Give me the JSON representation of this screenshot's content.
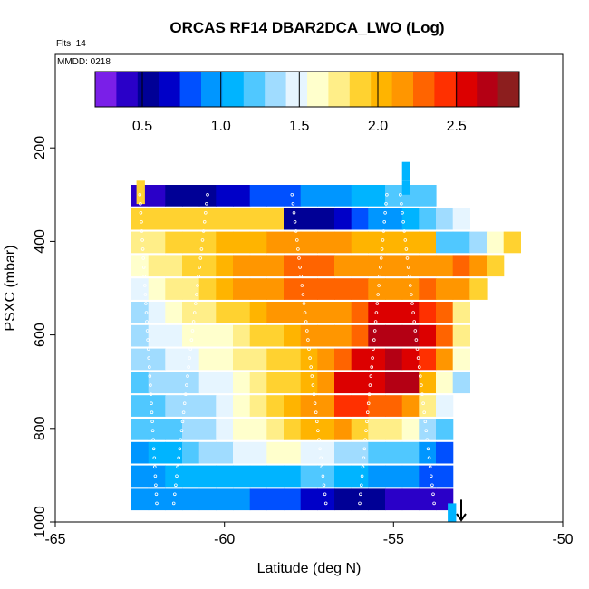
{
  "chart_data": {
    "type": "heatmap",
    "title": "ORCAS RF14 DBAR2DCA_LWO (Log)",
    "flights_label": "Flts: 14",
    "date_label": "MMDD: 0218",
    "xlabel": "Latitude (deg N)",
    "ylabel": "PSXC (mbar)",
    "xlim": [
      -65,
      -50
    ],
    "ylim": [
      1000,
      0
    ],
    "x_ticks": [
      "-65",
      "-60",
      "-55",
      "-50"
    ],
    "x_tick_values": [
      -65,
      -60,
      -55,
      -50
    ],
    "y_ticks": [
      "200",
      "400",
      "600",
      "800",
      "1000"
    ],
    "y_tick_values": [
      200,
      400,
      600,
      800,
      1000
    ],
    "colorbar": {
      "min": 0.2,
      "max": 2.9,
      "tick_labels": [
        "0.5",
        "1.0",
        "1.5",
        "2.0",
        "2.5"
      ],
      "tick_values": [
        0.5,
        1.0,
        1.5,
        2.0,
        2.5
      ],
      "colors": [
        "#7a1fe8",
        "#2a00c8",
        "#000096",
        "#0000c8",
        "#0050ff",
        "#0096ff",
        "#00b4ff",
        "#50c8ff",
        "#a0dcff",
        "#e6f5ff",
        "#ffffcc",
        "#ffee88",
        "#ffd230",
        "#ffb400",
        "#ff9600",
        "#ff6400",
        "#ff3000",
        "#dc0000",
        "#b40014",
        "#8c1e1e"
      ]
    },
    "x_bins": [
      -62.5,
      -62.0,
      -61.5,
      -61.0,
      -60.5,
      -60.0,
      -59.5,
      -59.0,
      -58.5,
      -58.0,
      -57.5,
      -57.0,
      -56.5,
      -56.0,
      -55.5,
      -55.0,
      -54.5,
      -54.0,
      -53.5,
      -53.0,
      -52.5,
      -52.0,
      -51.5
    ],
    "y_bins": [
      300,
      350,
      400,
      450,
      500,
      550,
      600,
      650,
      700,
      750,
      800,
      850,
      900,
      950
    ],
    "bin_width_deg": 0.5,
    "bin_height_mbar": 50,
    "values": [
      [
        0.35,
        0.45,
        0.5,
        0.55,
        0.6,
        0.65,
        0.7,
        0.75,
        0.8,
        0.85,
        0.9,
        0.95,
        1.0,
        1.05,
        1.1,
        1.15,
        1.2,
        1.25,
        null,
        null,
        null,
        null,
        null
      ],
      [
        1.85,
        1.85,
        1.85,
        1.9,
        1.9,
        1.95,
        1.95,
        1.95,
        1.95,
        0.5,
        0.55,
        0.6,
        0.7,
        0.8,
        0.9,
        1.0,
        1.1,
        1.2,
        1.35,
        1.45,
        null,
        null,
        null
      ],
      [
        1.7,
        1.8,
        1.85,
        1.9,
        1.95,
        2.0,
        2.05,
        2.05,
        2.1,
        2.1,
        2.15,
        2.15,
        2.1,
        2.05,
        2.0,
        2.0,
        2.0,
        2.05,
        1.15,
        1.25,
        1.4,
        1.6,
        1.9
      ],
      [
        1.6,
        1.7,
        1.8,
        1.85,
        1.95,
        2.05,
        2.15,
        2.2,
        2.2,
        2.25,
        2.25,
        2.25,
        2.2,
        2.15,
        2.1,
        2.1,
        2.15,
        2.2,
        2.2,
        2.25,
        2.2,
        1.95,
        null
      ],
      [
        1.5,
        1.6,
        1.7,
        1.8,
        1.9,
        2.0,
        2.1,
        2.15,
        2.2,
        2.25,
        2.25,
        2.3,
        2.3,
        2.25,
        2.2,
        2.15,
        2.2,
        2.25,
        2.2,
        2.1,
        1.85,
        null,
        null
      ],
      [
        1.4,
        1.5,
        1.6,
        1.7,
        1.8,
        1.85,
        1.95,
        2.05,
        2.1,
        2.15,
        2.2,
        2.2,
        2.2,
        2.25,
        2.55,
        2.6,
        2.6,
        2.4,
        2.3,
        1.7,
        null,
        null,
        null
      ],
      [
        1.4,
        1.45,
        1.5,
        1.55,
        1.6,
        1.65,
        1.75,
        1.85,
        1.95,
        2.05,
        2.1,
        2.1,
        2.2,
        2.3,
        2.65,
        2.75,
        2.7,
        2.5,
        2.3,
        1.75,
        null,
        null,
        null
      ],
      [
        1.35,
        1.4,
        1.45,
        1.5,
        1.55,
        1.6,
        1.7,
        1.75,
        1.85,
        1.95,
        2.05,
        2.15,
        2.3,
        2.55,
        2.6,
        2.65,
        2.6,
        2.45,
        2.1,
        1.6,
        null,
        null,
        null
      ],
      [
        1.25,
        1.3,
        1.35,
        1.4,
        1.45,
        1.5,
        1.6,
        1.7,
        1.85,
        1.95,
        2.05,
        2.2,
        2.5,
        2.55,
        2.55,
        2.7,
        2.75,
        2.0,
        1.6,
        1.4,
        null,
        null,
        null
      ],
      [
        1.2,
        1.25,
        1.3,
        1.35,
        1.4,
        1.45,
        1.55,
        1.7,
        1.85,
        2.05,
        2.1,
        2.2,
        2.45,
        2.4,
        2.35,
        2.35,
        2.15,
        1.75,
        1.45,
        null,
        null,
        null,
        null
      ],
      [
        1.15,
        1.2,
        1.25,
        1.3,
        1.4,
        1.5,
        1.55,
        1.6,
        1.75,
        1.9,
        2.0,
        2.05,
        2.1,
        1.9,
        1.8,
        1.7,
        1.6,
        1.4,
        1.2,
        null,
        null,
        null,
        null
      ],
      [
        1.0,
        1.05,
        1.1,
        1.2,
        1.3,
        1.4,
        1.45,
        1.5,
        1.55,
        1.55,
        1.5,
        1.45,
        1.4,
        1.3,
        1.25,
        1.2,
        1.15,
        1.0,
        0.85,
        null,
        null,
        null,
        null
      ],
      [
        0.95,
        1.0,
        1.05,
        1.1,
        1.1,
        1.1,
        1.1,
        1.05,
        1.05,
        1.1,
        1.15,
        1.15,
        1.1,
        1.05,
        1.0,
        0.95,
        0.9,
        0.85,
        0.8,
        null,
        null,
        null,
        null
      ],
      [
        0.9,
        0.95,
        1.0,
        1.0,
        1.0,
        0.95,
        0.9,
        0.85,
        0.8,
        0.75,
        0.7,
        0.65,
        0.6,
        0.55,
        0.5,
        0.45,
        0.45,
        0.45,
        0.45,
        null,
        null,
        null,
        null
      ]
    ],
    "extra_cells": [
      {
        "x": -54.75,
        "y": 230,
        "w": 0.25,
        "h": 40,
        "value": 1.05
      },
      {
        "x": -54.75,
        "y": 270,
        "w": 0.25,
        "h": 30,
        "value": 1.1
      },
      {
        "x": -62.6,
        "y": 270,
        "w": 0.25,
        "h": 50,
        "value": 1.95
      },
      {
        "x": -53.4,
        "y": 960,
        "w": 0.25,
        "h": 40,
        "value": 1.05
      }
    ],
    "profile_points": {
      "x_ranges": [
        [
          -62.5,
          -62.0
        ],
        [
          -61.5,
          -60.5
        ],
        [
          -58.0,
          -57.0
        ],
        [
          -56.0,
          -55.2
        ],
        [
          -54.8,
          -53.8
        ]
      ],
      "y_range": [
        300,
        960
      ]
    },
    "marker": {
      "type": "arrow",
      "x": -53.0,
      "y_from": 960,
      "y_to": 1000
    }
  }
}
